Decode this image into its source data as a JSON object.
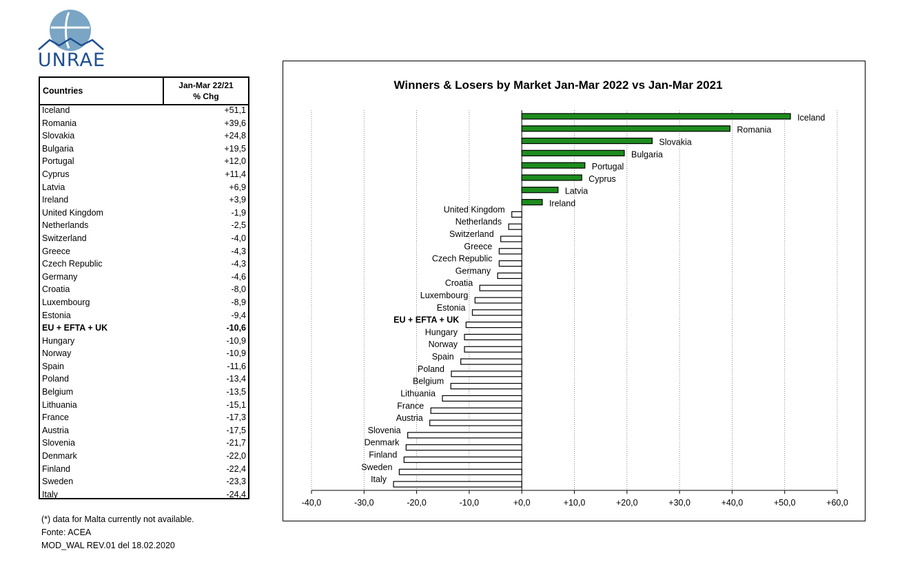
{
  "logo": {
    "text": "UNRAE",
    "color": "#1f4e93",
    "globe_color": "#7aa5c4"
  },
  "table": {
    "header_country": "Countries",
    "header_chg_line1": "Jan-Mar 22/21",
    "header_chg_line2": "% Chg",
    "rows": [
      {
        "country": "Iceland",
        "value": "+51,1"
      },
      {
        "country": "Romania",
        "value": "+39,6"
      },
      {
        "country": "Slovakia",
        "value": "+24,8"
      },
      {
        "country": "Bulgaria",
        "value": "+19,5"
      },
      {
        "country": "Portugal",
        "value": "+12,0"
      },
      {
        "country": "Cyprus",
        "value": "+11,4"
      },
      {
        "country": "Latvia",
        "value": "+6,9"
      },
      {
        "country": "Ireland",
        "value": "+3,9"
      },
      {
        "country": "United Kingdom",
        "value": "-1,9"
      },
      {
        "country": "Netherlands",
        "value": "-2,5"
      },
      {
        "country": "Switzerland",
        "value": "-4,0"
      },
      {
        "country": "Greece",
        "value": "-4,3"
      },
      {
        "country": "Czech Republic",
        "value": "-4,3"
      },
      {
        "country": "Germany",
        "value": "-4,6"
      },
      {
        "country": "Croatia",
        "value": "-8,0"
      },
      {
        "country": "Luxembourg",
        "value": "-8,9"
      },
      {
        "country": "Estonia",
        "value": "-9,4"
      },
      {
        "country": "EU + EFTA + UK",
        "value": "-10,6",
        "bold": true
      },
      {
        "country": "Hungary",
        "value": "-10,9"
      },
      {
        "country": "Norway",
        "value": "-10,9"
      },
      {
        "country": "Spain",
        "value": "-11,6"
      },
      {
        "country": "Poland",
        "value": "-13,4"
      },
      {
        "country": "Belgium",
        "value": "-13,5"
      },
      {
        "country": "Lithuania",
        "value": "-15,1"
      },
      {
        "country": "France",
        "value": "-17,3"
      },
      {
        "country": "Austria",
        "value": "-17,5"
      },
      {
        "country": "Slovenia",
        "value": "-21,7"
      },
      {
        "country": "Denmark",
        "value": "-22,0"
      },
      {
        "country": "Finland",
        "value": "-22,4"
      },
      {
        "country": "Sweden",
        "value": "-23,3"
      },
      {
        "country": "Italy",
        "value": "-24,4"
      }
    ]
  },
  "notes": {
    "line1": "(*) data for Malta currently not available.",
    "line2": "Fonte: ACEA",
    "line3": "MOD_WAL REV.01 del 18.02.2020"
  },
  "chart_data": {
    "type": "bar",
    "orientation": "horizontal",
    "title": "Winners & Losers by Market  Jan-Mar 2022 vs Jan-Mar 2021",
    "xlim": [
      -40,
      60
    ],
    "xticks": [
      "-40,0",
      "-30,0",
      "-20,0",
      "-10,0",
      "+0,0",
      "+10,0",
      "+20,0",
      "+30,0",
      "+40,0",
      "+50,0",
      "+60,0"
    ],
    "grid": "vertical dotted",
    "positive_color": "#1e8c1e",
    "negative_color": "#ffffff",
    "categories": [
      "Iceland",
      "Romania",
      "Slovakia",
      "Bulgaria",
      "Portugal",
      "Cyprus",
      "Latvia",
      "Ireland",
      "United Kingdom",
      "Netherlands",
      "Switzerland",
      "Greece",
      "Czech Republic",
      "Germany",
      "Croatia",
      "Luxembourg",
      "Estonia",
      "EU + EFTA + UK",
      "Hungary",
      "Norway",
      "Spain",
      "Poland",
      "Belgium",
      "Lithuania",
      "France",
      "Austria",
      "Slovenia",
      "Denmark",
      "Finland",
      "Sweden",
      "Italy"
    ],
    "values": [
      51.1,
      39.6,
      24.8,
      19.5,
      12.0,
      11.4,
      6.9,
      3.9,
      -1.9,
      -2.5,
      -4.0,
      -4.3,
      -4.3,
      -4.6,
      -8.0,
      -8.9,
      -9.4,
      -10.6,
      -10.9,
      -10.9,
      -11.6,
      -13.4,
      -13.5,
      -15.1,
      -17.3,
      -17.5,
      -21.7,
      -22.0,
      -22.4,
      -23.3,
      -24.4
    ],
    "bold_category": "EU + EFTA + UK"
  }
}
